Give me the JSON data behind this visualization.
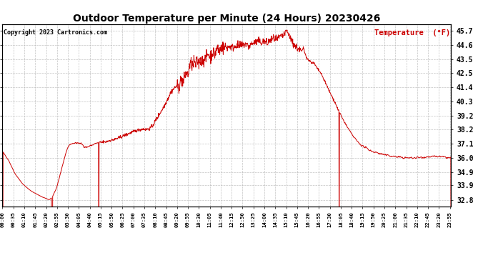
{
  "title": "Outdoor Temperature per Minute (24 Hours) 20230426",
  "copyright_text": "Copyright 2023 Cartronics.com",
  "legend_label": "Temperature  (°F)",
  "line_color": "#cc0000",
  "background_color": "#ffffff",
  "grid_color": "#aaaaaa",
  "yticks": [
    32.8,
    33.9,
    34.9,
    36.0,
    37.1,
    38.2,
    39.2,
    40.3,
    41.4,
    42.5,
    43.5,
    44.6,
    45.7
  ],
  "ylim": [
    32.3,
    46.2
  ],
  "total_minutes": 1440,
  "xtick_interval_minutes": 35
}
